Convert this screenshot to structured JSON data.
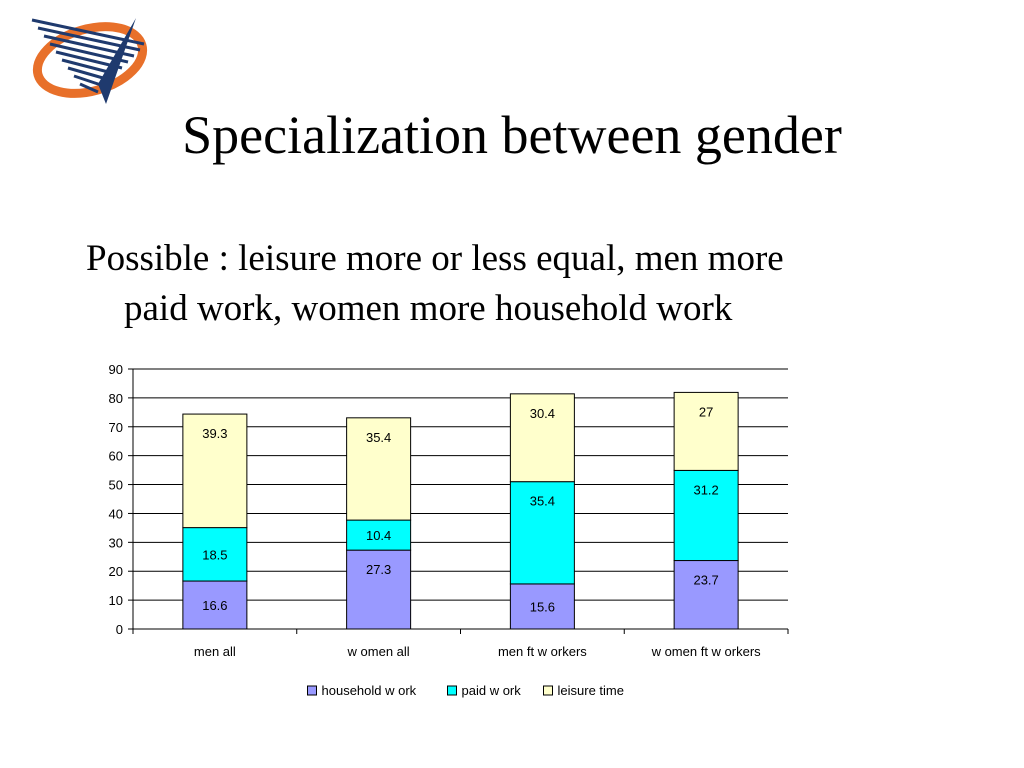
{
  "slide": {
    "title": "Specialization between gender",
    "subtitle_line1": "Possible : leisure more or less equal, men more",
    "subtitle_line2": "paid work, women more household work"
  },
  "colors": {
    "logo_orange": "#E8702A",
    "logo_navy": "#1F3A6E",
    "grid": "#000000"
  },
  "chart_data": {
    "type": "bar",
    "stacked": true,
    "categories": [
      "men all",
      "w omen all",
      "men ft w orkers",
      "w omen ft w orkers"
    ],
    "series": [
      {
        "name": "household w ork",
        "values": [
          16.6,
          27.3,
          15.6,
          23.7
        ],
        "color": "#9999FF"
      },
      {
        "name": "paid w ork",
        "values": [
          18.5,
          10.4,
          35.4,
          31.2
        ],
        "color": "#00FFFF"
      },
      {
        "name": "leisure time",
        "values": [
          39.3,
          35.4,
          30.4,
          27
        ],
        "color": "#FFFFCC"
      }
    ],
    "ylim": [
      0,
      90
    ],
    "yticks": [
      0,
      10,
      20,
      30,
      40,
      50,
      60,
      70,
      80,
      90
    ],
    "grid": true,
    "legend_position": "bottom",
    "xlabel": "",
    "ylabel": ""
  }
}
